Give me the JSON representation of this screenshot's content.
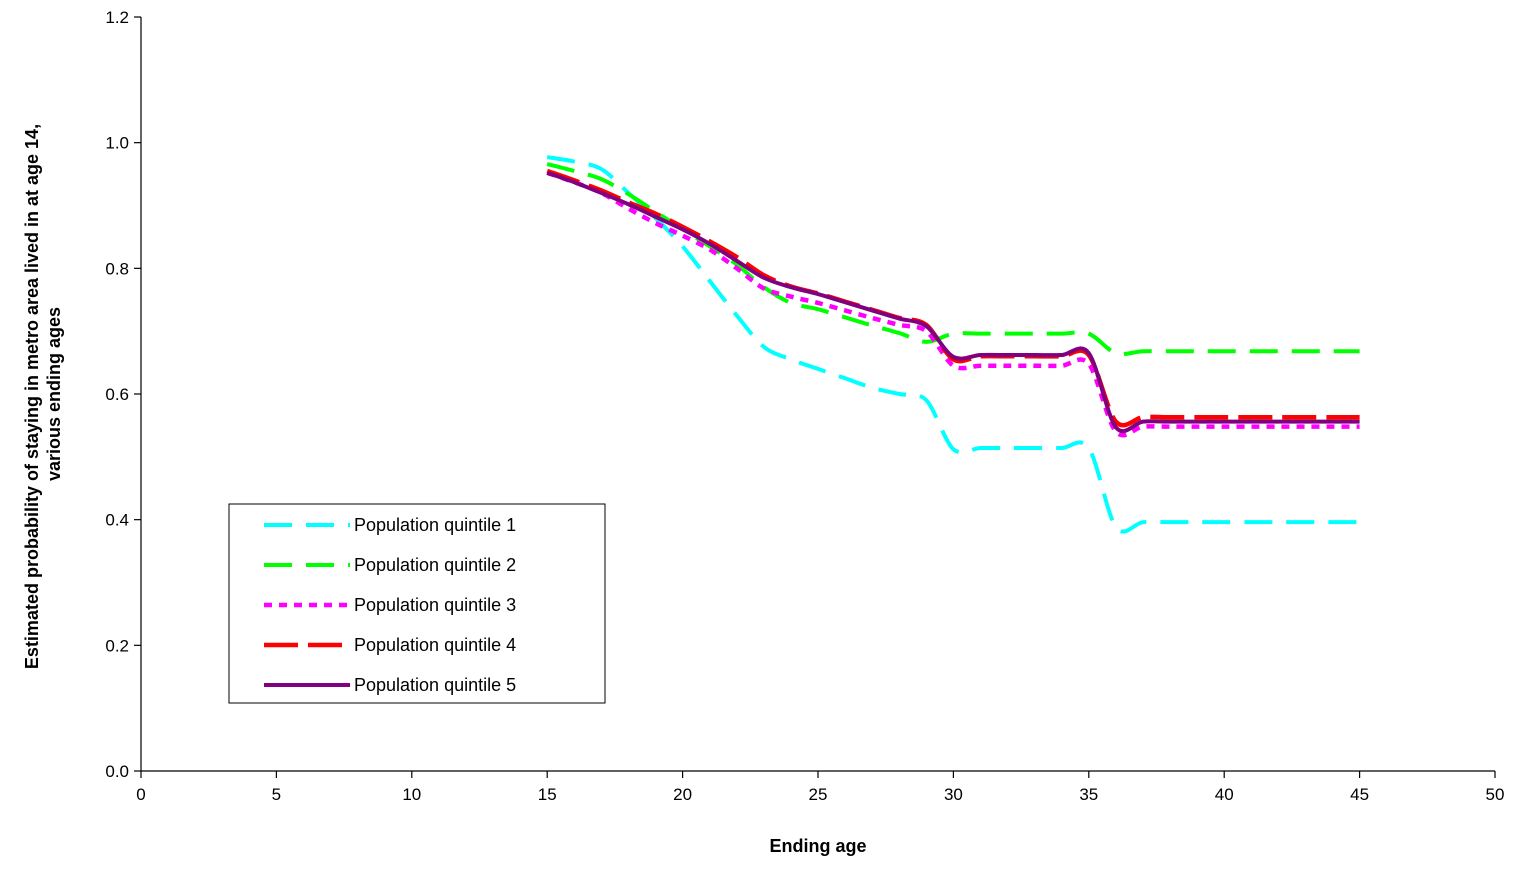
{
  "chart_data": {
    "type": "line",
    "title": "",
    "xlabel": "Ending age",
    "ylabel_lines": [
      "Estimated probability of staying in metro area lived in at age 14,",
      "various ending ages"
    ],
    "xlim": [
      0,
      50
    ],
    "ylim": [
      0,
      1.2
    ],
    "x_ticks": [
      0,
      5,
      10,
      15,
      20,
      25,
      30,
      35,
      40,
      45,
      50
    ],
    "x_tick_labels": [
      "0",
      "5",
      "10",
      "15",
      "20",
      "25",
      "30",
      "35",
      "40",
      "45",
      "50"
    ],
    "y_ticks": [
      0,
      0.2,
      0.4,
      0.6,
      0.8,
      1.0,
      1.2
    ],
    "y_tick_labels": [
      "0.0",
      "0.2",
      "0.4",
      "0.6",
      "0.8",
      "1.0",
      "1.2"
    ],
    "grid": false,
    "legend_position": "lower-left",
    "x": [
      15,
      16,
      17,
      18,
      19,
      20,
      21,
      22,
      23,
      24,
      25,
      26,
      27,
      28,
      29,
      30,
      31,
      32,
      33,
      34,
      35,
      36,
      37,
      38,
      39,
      40,
      41,
      42,
      43,
      44,
      45
    ],
    "series": [
      {
        "name": "Population quintile 1",
        "color": "#00ffff",
        "dash": "dashed",
        "values": [
          0.977,
          0.97,
          0.958,
          0.92,
          0.88,
          0.835,
          0.78,
          0.725,
          0.675,
          0.655,
          0.64,
          0.625,
          0.61,
          0.6,
          0.59,
          0.512,
          0.514,
          0.514,
          0.514,
          0.514,
          0.514,
          0.388,
          0.396,
          0.396,
          0.396,
          0.396,
          0.396,
          0.396,
          0.396,
          0.396,
          0.396
        ]
      },
      {
        "name": "Population quintile 2",
        "color": "#00ff00",
        "dash": "dashed",
        "values": [
          0.966,
          0.955,
          0.942,
          0.918,
          0.89,
          0.862,
          0.835,
          0.806,
          0.77,
          0.745,
          0.735,
          0.722,
          0.709,
          0.697,
          0.683,
          0.696,
          0.696,
          0.696,
          0.696,
          0.696,
          0.696,
          0.665,
          0.668,
          0.668,
          0.668,
          0.668,
          0.668,
          0.668,
          0.668,
          0.668,
          0.668
        ]
      },
      {
        "name": "Population quintile 3",
        "color": "#ff00ff",
        "dash": "dotted",
        "values": [
          0.952,
          0.937,
          0.92,
          0.895,
          0.872,
          0.852,
          0.83,
          0.8,
          0.768,
          0.755,
          0.745,
          0.733,
          0.721,
          0.71,
          0.7,
          0.645,
          0.645,
          0.645,
          0.645,
          0.645,
          0.648,
          0.54,
          0.548,
          0.548,
          0.548,
          0.548,
          0.548,
          0.548,
          0.548,
          0.548,
          0.548
        ]
      },
      {
        "name": "Population quintile 4",
        "color": "#ff0000",
        "dash": "longdash",
        "values": [
          0.955,
          0.94,
          0.924,
          0.905,
          0.887,
          0.866,
          0.843,
          0.818,
          0.789,
          0.771,
          0.76,
          0.747,
          0.734,
          0.721,
          0.71,
          0.655,
          0.66,
          0.66,
          0.66,
          0.66,
          0.662,
          0.556,
          0.563,
          0.563,
          0.563,
          0.563,
          0.563,
          0.563,
          0.563,
          0.563,
          0.563
        ]
      },
      {
        "name": "Population quintile 5",
        "color": "#800080",
        "dash": "solid",
        "values": [
          0.952,
          0.937,
          0.92,
          0.902,
          0.882,
          0.862,
          0.839,
          0.812,
          0.785,
          0.77,
          0.759,
          0.746,
          0.733,
          0.72,
          0.708,
          0.659,
          0.662,
          0.662,
          0.662,
          0.662,
          0.665,
          0.547,
          0.556,
          0.556,
          0.556,
          0.556,
          0.556,
          0.556,
          0.556,
          0.556,
          0.556
        ]
      }
    ]
  }
}
